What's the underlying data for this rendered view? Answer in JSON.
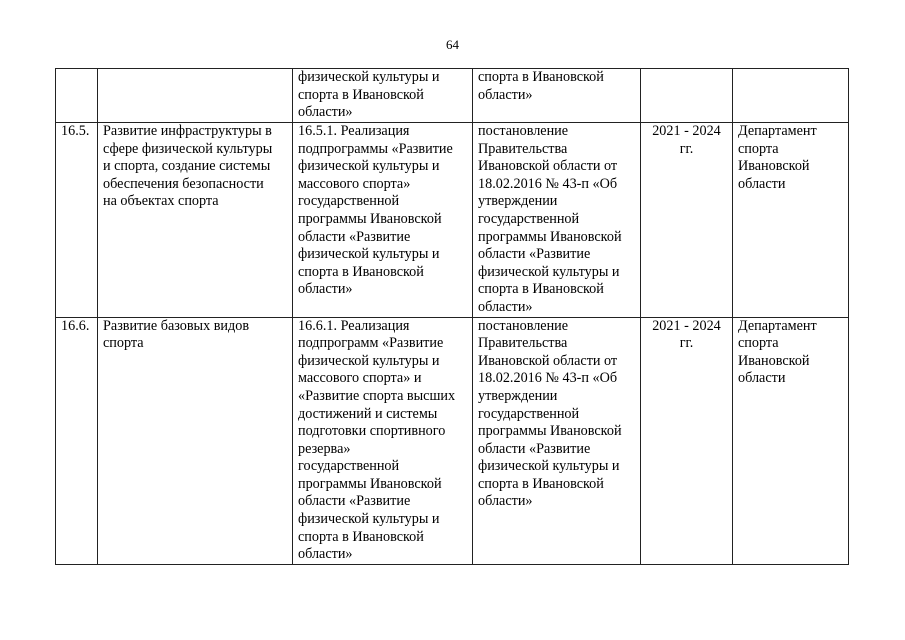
{
  "page_number": "64",
  "rows": [
    {
      "num": "",
      "name": "",
      "measure": "физической культуры и\nспорта в Ивановской\nобласти»",
      "basis": "спорта в Ивановской\nобласти»",
      "period": "",
      "executor": ""
    },
    {
      "num": "16.5.",
      "name": "Развитие инфраструктуры в\nсфере физической культуры\nи спорта, создание системы\nобеспечения безопасности\nна объектах спорта",
      "measure": "16.5.1. Реализация\nподпрограммы «Развитие\nфизической культуры и\nмассового спорта»\nгосударственной\nпрограммы Ивановской\nобласти «Развитие\nфизической культуры и\nспорта в Ивановской\nобласти»",
      "basis": "постановление\nПравительства\nИвановской области от\n18.02.2016 № 43-п «Об\nутверждении\nгосударственной\nпрограммы Ивановской\nобласти «Развитие\nфизической культуры и\nспорта в Ивановской\nобласти»",
      "period": "2021 - 2024\nгг.",
      "executor": "Департамент\nспорта\nИвановской\nобласти"
    },
    {
      "num": "16.6.",
      "name": "Развитие базовых видов\nспорта",
      "measure": "16.6.1. Реализация\nподпрограмм «Развитие\nфизической культуры и\nмассового спорта» и\n«Развитие спорта высших\nдостижений и системы\nподготовки спортивного\nрезерва»\nгосударственной\nпрограммы Ивановской\nобласти «Развитие\nфизической культуры и\nспорта в Ивановской\nобласти»",
      "basis": "постановление\nПравительства\nИвановской области от\n18.02.2016 № 43-п «Об\nутверждении\nгосударственной\nпрограммы Ивановской\nобласти «Развитие\nфизической культуры и\nспорта в Ивановской\nобласти»",
      "period": "2021 - 2024\nгг.",
      "executor": "Департамент\nспорта\nИвановской\nобласти"
    }
  ]
}
